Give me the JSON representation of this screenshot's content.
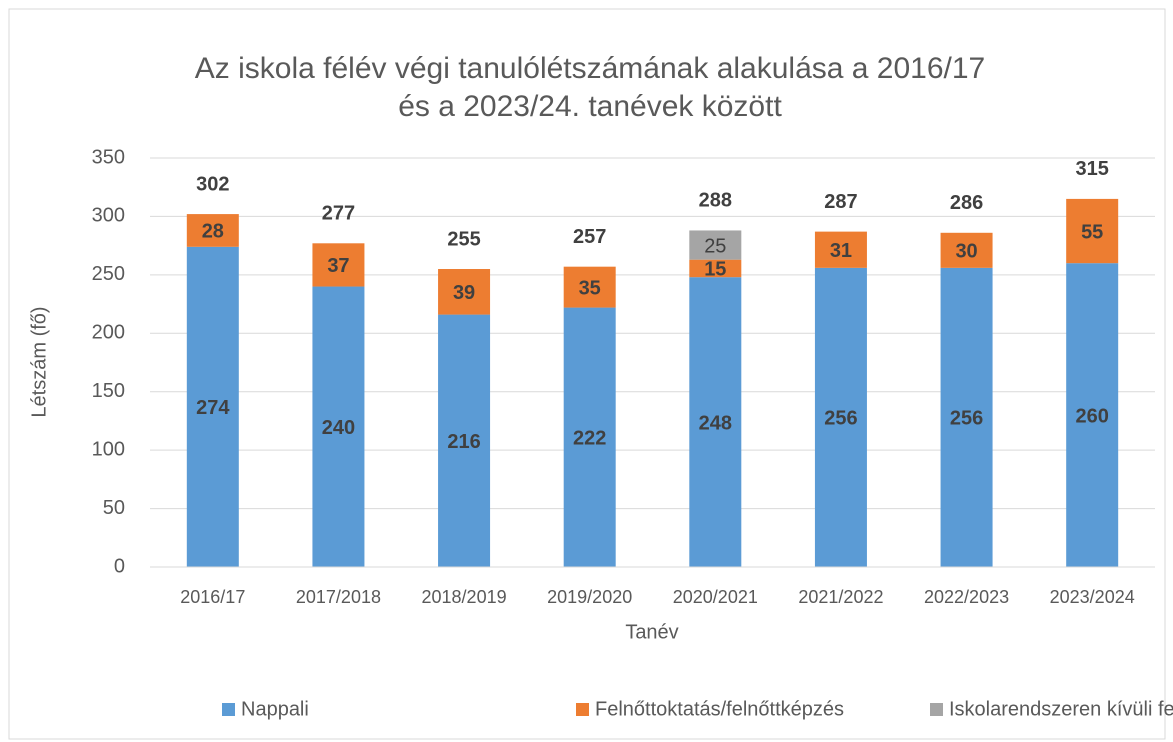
{
  "chart_data": {
    "type": "stacked_bar",
    "title": [
      "Az iskola félév végi tanulólétszámának alakulása a 2016/17",
      "és a 2023/24. tanévek között"
    ],
    "x_label": "Tanév",
    "y_label": "Létszám (fő)",
    "categories": [
      "2016/17",
      "2017/2018",
      "2018/2019",
      "2019/2020",
      "2020/2021",
      "2021/2022",
      "2022/2023",
      "2023/2024"
    ],
    "series": [
      {
        "name": "Nappali",
        "color": "#5b9bd5",
        "values": [
          274,
          240,
          216,
          222,
          248,
          256,
          256,
          260
        ]
      },
      {
        "name": "Felnőttoktatás/felnőttképzés",
        "color": "#ed7d31",
        "values": [
          28,
          37,
          39,
          35,
          15,
          31,
          30,
          55
        ]
      },
      {
        "name": "Iskolarendszeren kívüli felnőtt",
        "color": "#a5a5a5",
        "values": [
          null,
          null,
          null,
          null,
          25,
          null,
          null,
          null
        ]
      }
    ],
    "totals": [
      302,
      277,
      255,
      257,
      288,
      287,
      286,
      315
    ],
    "ylim": [
      0,
      350
    ],
    "yticks": [
      0,
      50,
      100,
      150,
      200,
      250,
      300,
      350
    ],
    "grid": true,
    "legend": "bottom"
  }
}
